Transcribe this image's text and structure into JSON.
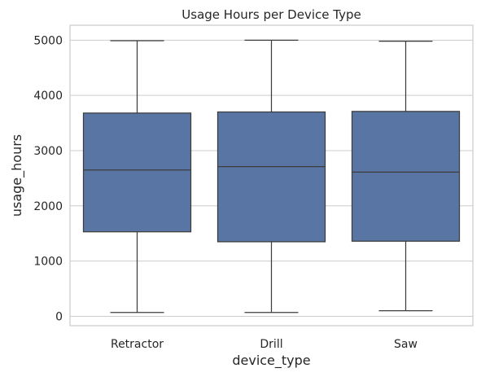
{
  "chart_data": {
    "type": "box",
    "title": "Usage Hours per Device Type",
    "xlabel": "device_type",
    "ylabel": "usage_hours",
    "ylim": [
      -170,
      5270
    ],
    "yticks": [
      0,
      1000,
      2000,
      3000,
      4000,
      5000
    ],
    "grid": true,
    "box_color": "#5875a4",
    "edge_color": "#3d3d3d",
    "grid_color": "#cccccc",
    "categories": [
      "Retractor",
      "Drill",
      "Saw"
    ],
    "boxes": [
      {
        "category": "Retractor",
        "min": 70,
        "q1": 1530,
        "median": 2650,
        "q3": 3680,
        "max": 4990
      },
      {
        "category": "Drill",
        "min": 70,
        "q1": 1350,
        "median": 2710,
        "q3": 3700,
        "max": 5000
      },
      {
        "category": "Saw",
        "min": 100,
        "q1": 1360,
        "median": 2610,
        "q3": 3710,
        "max": 4980
      }
    ]
  }
}
